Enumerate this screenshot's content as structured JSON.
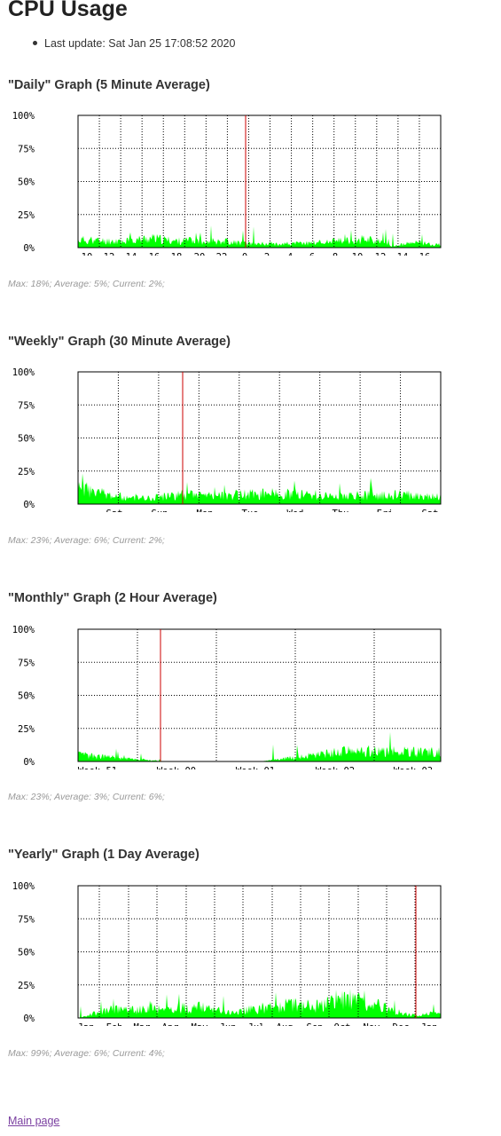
{
  "page": {
    "title": "CPU Usage",
    "last_update": "Last update: Sat Jan 25 17:08:52 2020",
    "footer_link": "Main page"
  },
  "colors": {
    "data_fill": "#00ff00",
    "marker": "#cc0000",
    "grid": "#000000",
    "frame": "#000000"
  },
  "graphs": [
    {
      "title": "\"Daily\" Graph (5 Minute Average)",
      "stats": "Max: 18%; Average: 5%; Current: 2%;",
      "y_labels": [
        "100%",
        "75%",
        "50%",
        "25%",
        "0%"
      ],
      "x_labels": [
        "10",
        "12",
        "14",
        "16",
        "18",
        "20",
        "22",
        "0",
        "2",
        "4",
        "6",
        "8",
        "10",
        "12",
        "14",
        "16"
      ]
    },
    {
      "title": "\"Weekly\" Graph (30 Minute Average)",
      "stats": "Max: 23%; Average: 6%; Current: 2%;",
      "y_labels": [
        "100%",
        "75%",
        "50%",
        "25%",
        "0%"
      ],
      "x_labels": [
        "Sat",
        "Sun",
        "Mon",
        "Tue",
        "Wed",
        "Thu",
        "Fri",
        "Sat"
      ]
    },
    {
      "title": "\"Monthly\" Graph (2 Hour Average)",
      "stats": "Max: 23%; Average: 3%; Current: 6%;",
      "y_labels": [
        "100%",
        "75%",
        "50%",
        "25%",
        "0%"
      ],
      "x_labels": [
        "Week 51",
        "Week 00",
        "Week 01",
        "Week 02",
        "Week 03"
      ]
    },
    {
      "title": "\"Yearly\" Graph (1 Day Average)",
      "stats": "Max: 99%; Average: 6%; Current: 4%;",
      "y_labels": [
        "100%",
        "75%",
        "50%",
        "25%",
        "0%"
      ],
      "x_labels": [
        "Jan",
        "Feb",
        "Mar",
        "Apr",
        "May",
        "Jun",
        "Jul",
        "Aug",
        "Sep",
        "Oct",
        "Nov",
        "Dec",
        "Jan"
      ]
    }
  ],
  "chart_data": [
    {
      "type": "area",
      "title": "\"Daily\" Graph (5 Minute Average)",
      "ylim": [
        0,
        100
      ],
      "x": [
        "10",
        "12",
        "14",
        "16",
        "18",
        "20",
        "22",
        "0",
        "2",
        "4",
        "6",
        "8",
        "10",
        "12",
        "14",
        "16"
      ],
      "series": [
        {
          "values": [
            6,
            5,
            5,
            7,
            5,
            5,
            5,
            3,
            3,
            3,
            4,
            5,
            7,
            1,
            4,
            2
          ]
        }
      ]
    },
    {
      "type": "area",
      "title": "\"Weekly\" Graph (30 Minute Average)",
      "ylim": [
        0,
        100
      ],
      "x": [
        "Sat",
        "Sun",
        "Mon",
        "Tue",
        "Wed",
        "Thu",
        "Fri",
        "Sat"
      ],
      "series": [
        {
          "values": [
            12,
            4,
            7,
            7,
            8,
            6,
            7,
            6
          ]
        }
      ]
    },
    {
      "type": "area",
      "title": "\"Monthly\" Graph (2 Hour Average)",
      "ylim": [
        0,
        100
      ],
      "x": [
        "Week 51",
        "Week 00",
        "Week 01",
        "Week 02",
        "Week 03"
      ],
      "series": [
        {
          "values": [
            5,
            0,
            0,
            8,
            7
          ]
        }
      ]
    },
    {
      "type": "area",
      "title": "\"Yearly\" Graph (1 Day Average)",
      "ylim": [
        0,
        100
      ],
      "x": [
        "Jan",
        "Feb",
        "Mar",
        "Apr",
        "May",
        "Jun",
        "Jul",
        "Aug",
        "Sep",
        "Oct",
        "Nov",
        "Dec",
        "Jan"
      ],
      "series": [
        {
          "values": [
            0,
            6,
            6,
            7,
            8,
            4,
            7,
            10,
            9,
            14,
            9,
            2,
            4
          ]
        }
      ]
    }
  ]
}
